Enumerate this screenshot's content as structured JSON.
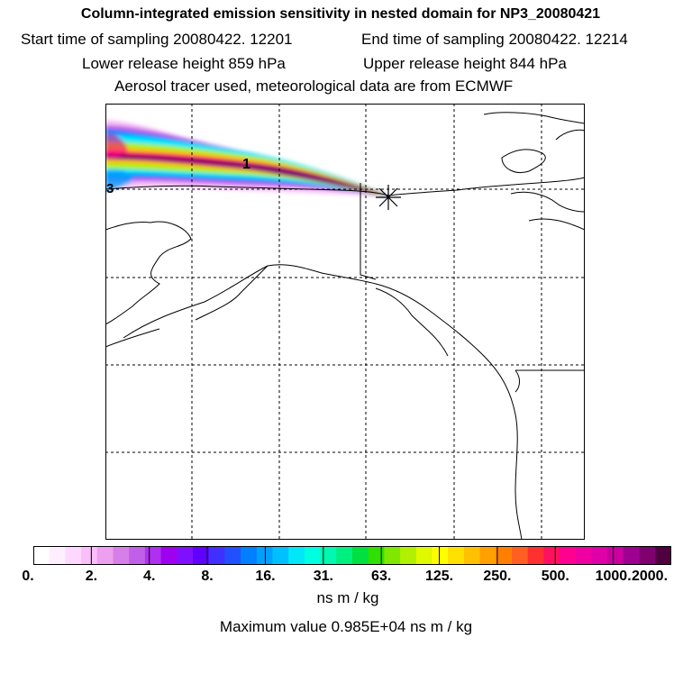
{
  "header": {
    "title": "Column-integrated emission sensitivity in nested domain for NP3_20080421",
    "start_time": "Start time of sampling 20080422. 12201",
    "end_time": "End time of sampling 20080422. 12214",
    "lower_release": "Lower release height  859 hPa",
    "upper_release": "Upper release height  844 hPa",
    "tracer_info": "Aerosol tracer used, meteorological data are from ECMWF"
  },
  "map": {
    "plume_labels": [
      "1",
      "3"
    ],
    "release_marker": "asterisk"
  },
  "colorbar": {
    "colors": [
      "#ffffff",
      "#ffeffe",
      "#ffd8ff",
      "#f8bff8",
      "#ef9fef",
      "#d77fe8",
      "#c05fe8",
      "#b030f0",
      "#a000f0",
      "#7f10ff",
      "#6000ff",
      "#3f30ff",
      "#2050ff",
      "#0080ff",
      "#00a0ff",
      "#00c0ff",
      "#00e8f8",
      "#00ffe0",
      "#00f8b0",
      "#00f080",
      "#00e040",
      "#30e000",
      "#80e800",
      "#b0f000",
      "#e0f800",
      "#ffff00",
      "#ffe000",
      "#ffc000",
      "#ff9f00",
      "#ff8000",
      "#ff5f20",
      "#ff3030",
      "#ff1060",
      "#ff0090",
      "#f000a0",
      "#e000a8",
      "#c800a0",
      "#a00090",
      "#800070",
      "#500040"
    ],
    "tick_labels": [
      "0.",
      "2.",
      "4.",
      "8.",
      "16.",
      "31.",
      "63.",
      "125.",
      "250.",
      "500.",
      "1000.",
      "2000."
    ],
    "units": "ns m / kg",
    "max_value": "Maximum value  0.985E+04 ns m / kg"
  }
}
